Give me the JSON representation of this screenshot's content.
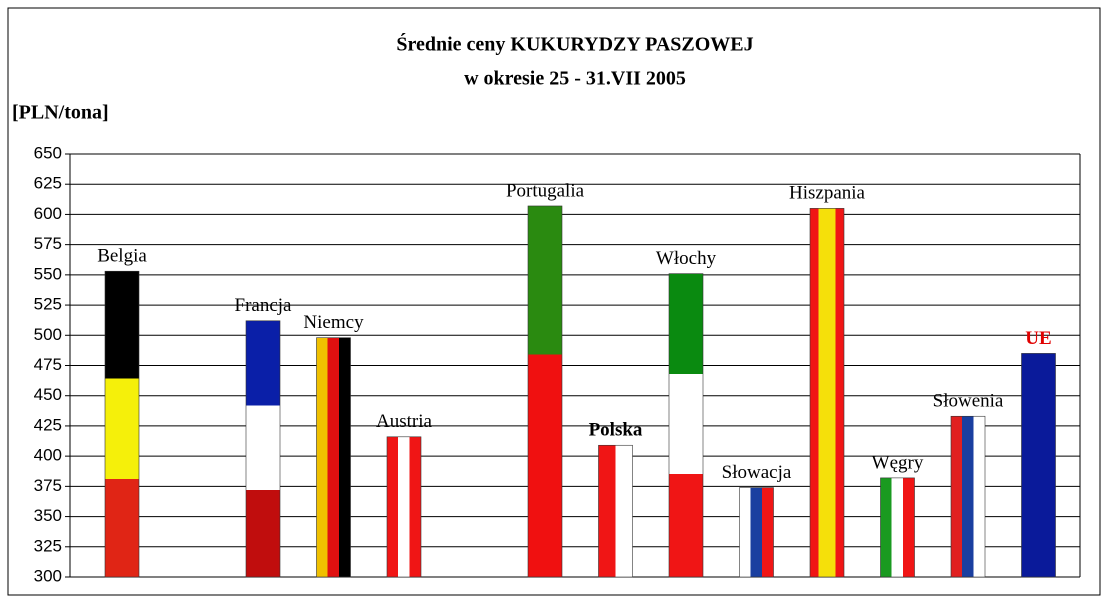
{
  "chart_data": {
    "type": "bar",
    "title": "Średnie ceny KUKURYDZY PASZOWEJ",
    "subtitle": "w okresie 25 - 31.VII 2005",
    "y_label": "[PLN/tona]",
    "categories": [
      "Belgia",
      null,
      "Francja",
      "Niemcy",
      "Austria",
      null,
      "Portugalia",
      "Polska",
      "Włochy",
      "Słowacja",
      "Hiszpania",
      "Węgry",
      "Słowenia",
      "UE"
    ],
    "values": [
      553,
      null,
      512,
      498,
      416,
      null,
      607,
      409,
      551,
      374,
      605,
      382,
      433,
      485
    ],
    "ylim": [
      300,
      650
    ],
    "yticks": [
      300,
      325,
      350,
      375,
      400,
      425,
      450,
      475,
      500,
      525,
      550,
      575,
      600,
      625,
      650
    ],
    "grid": true
  }
}
